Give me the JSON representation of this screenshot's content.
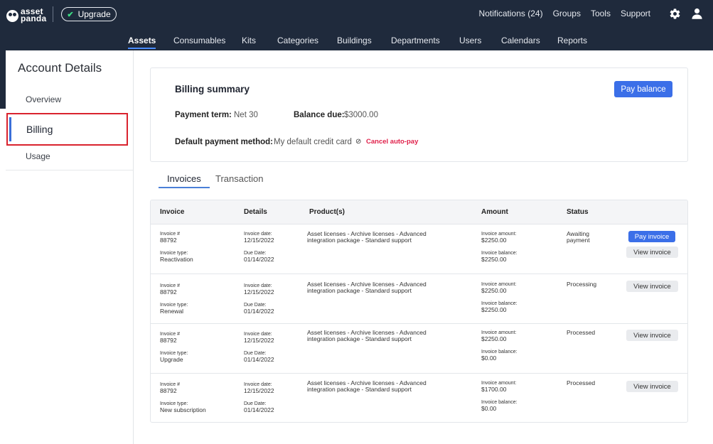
{
  "brand": {
    "line1": "asset",
    "line2": "panda"
  },
  "upgrade": {
    "label": "Upgrade"
  },
  "topnav": {
    "notifications": "Notifications (24)",
    "groups": "Groups",
    "tools": "Tools",
    "support": "Support"
  },
  "mainnav": [
    "Assets",
    "Consumables",
    "Kits",
    "Categories",
    "Buildings",
    "Departments",
    "Users",
    "Calendars",
    "Reports"
  ],
  "sidebar": {
    "title": "Account Details",
    "items": [
      "Overview",
      "Billing",
      "Usage"
    ]
  },
  "billing": {
    "title": "Billing summary",
    "pay_balance": "Pay balance",
    "payment_term_label": "Payment term:",
    "payment_term_value": "Net 30",
    "balance_due_label": "Balance due:",
    "balance_due_value": "$3000.00",
    "default_method_label": "Default payment method:",
    "default_method_value": "My default credit card",
    "cancel_autopay": "Cancel auto-pay"
  },
  "tabs": {
    "invoices": "Invoices",
    "transaction": "Transaction"
  },
  "table": {
    "headers": [
      "Invoice",
      "Details",
      "Product(s)",
      "Amount",
      "Status"
    ],
    "labels": {
      "invoice_no": "Invoice #",
      "invoice_type": "Invoice type:",
      "invoice_date": "Invoice date:",
      "due_date": "Due Date:",
      "invoice_amount": "Invoice amount:",
      "invoice_balance": "Invoice balance:",
      "pay_invoice": "Pay invoice",
      "view_invoice": "View invoice"
    },
    "rows": [
      {
        "number": "88792",
        "type": "Reactivation",
        "date": "12/15/2022",
        "due": "01/14/2022",
        "products": "Asset licenses - Archive licenses - Advanced integration package - Standard support",
        "amount": "$2250.00",
        "balance": "$2250.00",
        "status": "Awaiting payment"
      },
      {
        "number": "88792",
        "type": "Renewal",
        "date": "12/15/2022",
        "due": "01/14/2022",
        "products": "Asset licenses - Archive licenses - Advanced integration package - Standard support",
        "amount": "$2250.00",
        "balance": "$2250.00",
        "status": "Processing"
      },
      {
        "number": "88792",
        "type": "Upgrade",
        "date": "12/15/2022",
        "due": "01/14/2022",
        "products": "Asset licenses - Archive licenses - Advanced integration package - Standard support",
        "amount": "$2250.00",
        "balance": "$0.00",
        "status": "Processed"
      },
      {
        "number": "88792",
        "type": "New subscription",
        "date": "12/15/2022",
        "due": "01/14/2022",
        "products": "Asset licenses - Archive licenses - Advanced integration package - Standard support",
        "amount": "$1700.00",
        "balance": "$0.00",
        "status": "Processed"
      }
    ]
  }
}
